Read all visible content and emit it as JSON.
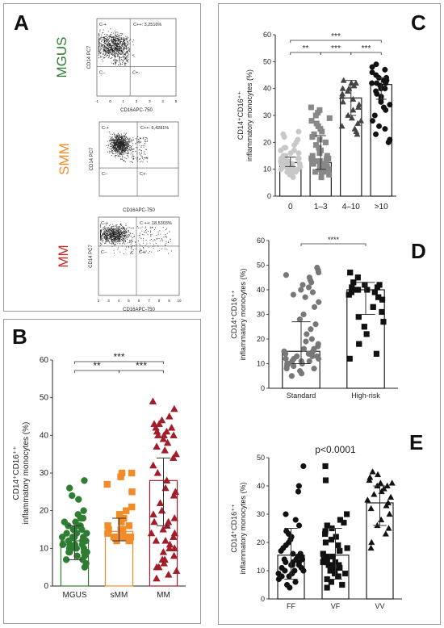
{
  "panels": {
    "A": {
      "label": "A",
      "groups": [
        "MGUS",
        "SMM",
        "MM"
      ],
      "group_colors": [
        "#2e7d32",
        "#f28c28",
        "#c62828"
      ],
      "plots": [
        {
          "ylabel": "CD14 PC7",
          "xlabel": "CD16APC-750",
          "gate_text": "C++: 3,2516%",
          "q_labels": [
            "C-+",
            "C--",
            "C+-"
          ],
          "ticks": [
            "-1",
            "0",
            "1",
            "2",
            "3",
            "4",
            "5"
          ]
        },
        {
          "ylabel": "CD14 PC7",
          "xlabel": "CD16APC-750",
          "gate_text": "C++: 6,4281%",
          "q_labels": [
            "C-+",
            "C--",
            "C+-"
          ],
          "ticks": []
        },
        {
          "ylabel": "CD14 PC7",
          "xlabel": "CD16APC-750",
          "gate_text": "C ++: 18,5303%",
          "q_labels": [
            "C-+",
            "C--",
            "C+-"
          ],
          "ticks": [
            "2",
            "3",
            "4",
            "5",
            "6",
            "7",
            "8",
            "9",
            "10"
          ]
        }
      ]
    },
    "B": {
      "label": "B"
    },
    "C": {
      "label": "C"
    },
    "D": {
      "label": "D"
    },
    "E": {
      "label": "E"
    }
  },
  "chart_data": [
    {
      "panel": "B",
      "type": "bar",
      "ylabel_lines": [
        "CD14⁺CD16⁺⁺",
        "inflammatory monocytes (%)"
      ],
      "categories": [
        "MGUS",
        "sMM",
        "MM"
      ],
      "bar_colors": [
        "#2e7d32",
        "#f28c28",
        "#a11d2a"
      ],
      "markers": [
        "circle",
        "square",
        "triangle"
      ],
      "values": [
        12,
        14.5,
        28
      ],
      "error_bars": [
        [
          7,
          16
        ],
        [
          12,
          18
        ],
        [
          16,
          34
        ]
      ],
      "ylim": [
        0,
        60
      ],
      "yticks": [
        0,
        10,
        20,
        30,
        40,
        50,
        60
      ],
      "points": [
        [
          28,
          26,
          24,
          23,
          20,
          19,
          18,
          18,
          17,
          17,
          16,
          16,
          15,
          15,
          15,
          14,
          14,
          14,
          13,
          13,
          13,
          12,
          12,
          12,
          12,
          11,
          11,
          11,
          11,
          10,
          10,
          10,
          10,
          9,
          9,
          9,
          8,
          8,
          7,
          7,
          6,
          5,
          13,
          16,
          12,
          9,
          10,
          15,
          11
        ],
        [
          30,
          30,
          29,
          27,
          25,
          21,
          20,
          19,
          18,
          17,
          17,
          16,
          16,
          15,
          15,
          15,
          14,
          14,
          14,
          13,
          13,
          13,
          13,
          12,
          12
        ],
        [
          49,
          47,
          45,
          44,
          43,
          43,
          42,
          42,
          41,
          41,
          40,
          40,
          40,
          39,
          38,
          37,
          36,
          35,
          34,
          32,
          30,
          28,
          26,
          25,
          24,
          22,
          20,
          19,
          18,
          17,
          17,
          16,
          15,
          14,
          14,
          13,
          12,
          12,
          11,
          10,
          10,
          9,
          8,
          7,
          7,
          6,
          5,
          5,
          4,
          3,
          2
        ]
      ],
      "significance": [
        {
          "from": 0,
          "to": 1,
          "label": "**"
        },
        {
          "from": 1,
          "to": 2,
          "label": "***"
        },
        {
          "from": 0,
          "to": 2,
          "label": "***"
        }
      ]
    },
    {
      "panel": "C",
      "type": "bar",
      "ylabel_lines": [
        "CD14⁺CD16⁺⁺",
        "inflammatory monocytes (%)"
      ],
      "categories": [
        "0",
        "1–3",
        "4–10",
        ">10"
      ],
      "bar_colors": [
        "#ffffff",
        "#ffffff",
        "#ffffff",
        "#ffffff"
      ],
      "point_colors": [
        "#c8c8c8",
        "#888888",
        "#444444",
        "#111111"
      ],
      "markers": [
        "circle",
        "square",
        "triangle",
        "circle"
      ],
      "values": [
        12.5,
        12.5,
        36.5,
        41.5
      ],
      "error_bars": [
        [
          11,
          14.5
        ],
        [
          10,
          22.5
        ],
        [
          30,
          43
        ],
        [
          36,
          44
        ]
      ],
      "ylim": [
        0,
        60
      ],
      "yticks": [
        0,
        10,
        20,
        30,
        40,
        50,
        60
      ],
      "points": [
        [
          24,
          23,
          22,
          21,
          20,
          19,
          18,
          17,
          16,
          16,
          15,
          15,
          14,
          14,
          13,
          13,
          13,
          12,
          12,
          12,
          12,
          11,
          11,
          11,
          11,
          10,
          10,
          10,
          10,
          9,
          9,
          9,
          8,
          8,
          7,
          17,
          18,
          14,
          13,
          12,
          10,
          11,
          15
        ],
        [
          33,
          32,
          31,
          30,
          29,
          28,
          27,
          26,
          25,
          24,
          23,
          22,
          21,
          20,
          19,
          18,
          17,
          16,
          15,
          14,
          14,
          13,
          13,
          13,
          12,
          12,
          12,
          12,
          11,
          11,
          11,
          11,
          10,
          10,
          10,
          10,
          9,
          9,
          9,
          8,
          7,
          14,
          15,
          13,
          12
        ],
        [
          43,
          42,
          42,
          41,
          40,
          40,
          39,
          38,
          37,
          36,
          35,
          34,
          33,
          32,
          30,
          29,
          28,
          27,
          26,
          25,
          24,
          23
        ],
        [
          49,
          48,
          47,
          46,
          45,
          44,
          44,
          43,
          43,
          43,
          42,
          42,
          42,
          41,
          41,
          40,
          40,
          39,
          38,
          37,
          36,
          35,
          34,
          33,
          32,
          30,
          28,
          26,
          25,
          23,
          21,
          20
        ]
      ],
      "significance": [
        {
          "from": 0,
          "to": 1,
          "label": "**"
        },
        {
          "from": 1,
          "to": 2,
          "label": "***"
        },
        {
          "from": 2,
          "to": 3,
          "label": "***"
        },
        {
          "from": 0,
          "to": 3,
          "label": "***"
        }
      ]
    },
    {
      "panel": "D",
      "type": "bar",
      "ylabel_lines": [
        "CD14⁺CD16⁺⁺",
        "inflammatory monocytes (%)"
      ],
      "categories": [
        "Standard",
        "High-risk"
      ],
      "bar_colors": [
        "#ffffff",
        "#ffffff"
      ],
      "point_colors": [
        "#777777",
        "#111111"
      ],
      "markers": [
        "circle",
        "square"
      ],
      "values": [
        15,
        40
      ],
      "error_bars": [
        [
          10,
          27
        ],
        [
          30,
          43
        ]
      ],
      "ylim": [
        0,
        60
      ],
      "yticks": [
        0,
        10,
        20,
        30,
        40,
        50,
        60
      ],
      "points": [
        [
          49,
          48,
          47,
          46,
          45,
          44,
          43,
          42,
          41,
          40,
          39,
          38,
          37,
          35,
          33,
          30,
          28,
          26,
          24,
          22,
          20,
          19,
          18,
          17,
          16,
          16,
          15,
          15,
          14,
          14,
          13,
          13,
          12,
          12,
          12,
          11,
          11,
          11,
          10,
          10,
          10,
          9,
          9,
          8,
          8,
          7,
          6,
          5,
          14,
          13
        ],
        [
          47,
          45,
          43,
          42,
          42,
          41,
          41,
          40,
          40,
          40,
          39,
          39,
          38,
          37,
          36,
          33,
          31,
          29,
          27,
          25,
          22,
          18,
          14,
          12
        ]
      ],
      "significance": [
        {
          "from": 0,
          "to": 1,
          "label": "****"
        }
      ]
    },
    {
      "panel": "E",
      "type": "bar",
      "ylabel_lines": [
        "CD14⁺CD16⁺⁺",
        "inflammatory monocytes (%)"
      ],
      "categories": [
        "FF",
        "VF",
        "VV"
      ],
      "bar_colors": [
        "#ffffff",
        "#ffffff",
        "#ffffff"
      ],
      "point_colors": [
        "#111111",
        "#111111",
        "#111111"
      ],
      "markers": [
        "circle",
        "square",
        "triangle"
      ],
      "values": [
        15.5,
        15.5,
        34
      ],
      "error_bars": [
        [
          7,
          25
        ],
        [
          7,
          25
        ],
        [
          26,
          40
        ]
      ],
      "ylim": [
        0,
        50
      ],
      "yticks": [
        0,
        10,
        20,
        30,
        40,
        50
      ],
      "annotation": "p<0.0001",
      "points": [
        [
          47,
          40,
          38,
          30,
          28,
          26,
          24,
          23,
          22,
          21,
          20,
          19,
          18,
          17,
          16,
          16,
          15,
          15,
          14,
          14,
          13,
          13,
          12,
          12,
          11,
          11,
          10,
          10,
          9,
          9,
          8,
          8,
          7,
          6,
          5,
          4,
          12,
          13,
          14,
          10
        ],
        [
          47,
          42,
          30,
          28,
          27,
          26,
          25,
          24,
          23,
          22,
          21,
          20,
          19,
          18,
          17,
          16,
          15,
          15,
          14,
          14,
          13,
          13,
          12,
          12,
          11,
          11,
          10,
          10,
          9,
          9,
          8,
          7,
          6,
          5,
          4,
          12,
          13
        ],
        [
          45,
          44,
          43,
          42,
          41,
          41,
          40,
          40,
          39,
          38,
          37,
          36,
          35,
          34,
          33,
          32,
          30,
          28,
          26,
          25,
          23,
          20,
          18
        ]
      ]
    }
  ]
}
